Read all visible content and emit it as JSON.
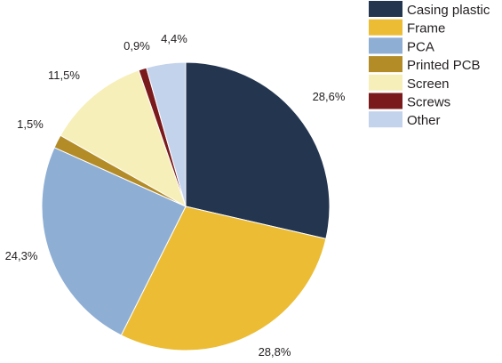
{
  "chart_data": {
    "type": "pie",
    "title": "",
    "start_angle_deg": 0,
    "direction": "clockwise",
    "legend_position": "top-right",
    "categories": [
      "Casing plastic",
      "Frame",
      "PCA",
      "Printed PCB",
      "Screen",
      "Screws",
      "Other"
    ],
    "values": [
      28.6,
      28.8,
      24.3,
      1.5,
      11.5,
      0.9,
      4.4
    ],
    "value_labels": [
      "28,6%",
      "28,8%",
      "24,3%",
      "1,5%",
      "11,5%",
      "0,9%",
      "4,4%"
    ],
    "colors": [
      "#243550",
      "#ebbc34",
      "#8faed4",
      "#b38b27",
      "#f6efba",
      "#7a1a1c",
      "#c3d3ec"
    ]
  }
}
